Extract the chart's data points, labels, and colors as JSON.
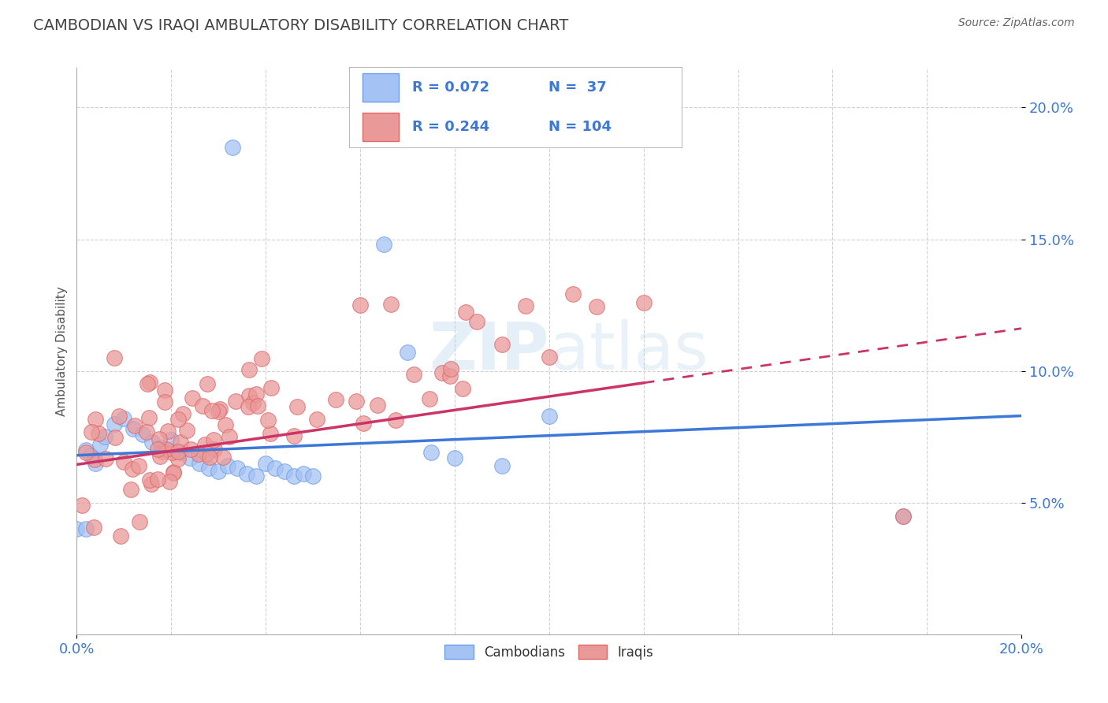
{
  "title": "CAMBODIAN VS IRAQI AMBULATORY DISABILITY CORRELATION CHART",
  "source": "Source: ZipAtlas.com",
  "ylabel": "Ambulatory Disability",
  "ytick_labels": [
    "5.0%",
    "10.0%",
    "15.0%",
    "20.0%"
  ],
  "ytick_values": [
    0.05,
    0.1,
    0.15,
    0.2
  ],
  "xlim": [
    0.0,
    0.2
  ],
  "ylim": [
    0.0,
    0.215
  ],
  "cambodian_color": "#a4c2f4",
  "iraqi_color": "#ea9999",
  "cambodian_edge_color": "#6d9eeb",
  "iraqi_edge_color": "#e06666",
  "cambodian_line_color": "#3c78d8",
  "iraqi_line_color": "#cc3366",
  "legend_R_cambodian": "R = 0.072",
  "legend_N_cambodian": "N =  37",
  "legend_R_iraqi": "R = 0.244",
  "legend_N_iraqi": "N = 104",
  "watermark_zip": "ZIP",
  "watermark_atlas": "atlas",
  "background_color": "#ffffff",
  "grid_color": "#cccccc",
  "tick_color": "#3c78d8",
  "title_color": "#434343",
  "source_color": "#666666"
}
